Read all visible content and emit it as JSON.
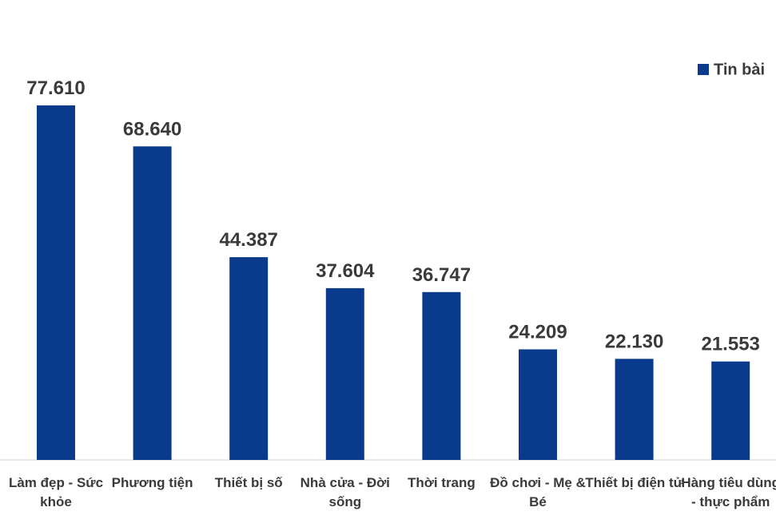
{
  "chart_data": {
    "type": "bar",
    "categories": [
      "Làm đẹp - Sức khỏe",
      "Phương tiện",
      "Thiết bị số",
      "Nhà cửa - Đời sống",
      "Thời trang",
      "Đồ chơi - Mẹ & Bé",
      "Thiết bị điện tử",
      "Hàng tiêu dùng - thực phẩm"
    ],
    "series": [
      {
        "name": "Tin bài",
        "color": "#0a3a8c",
        "values": [
          77610,
          68640,
          44387,
          37604,
          36747,
          24209,
          22130,
          21553
        ],
        "value_labels": [
          "77.610",
          "68.640",
          "44.387",
          "37.604",
          "36.747",
          "24.209",
          "22.130",
          "21.553"
        ]
      }
    ],
    "legend": "top-right"
  }
}
